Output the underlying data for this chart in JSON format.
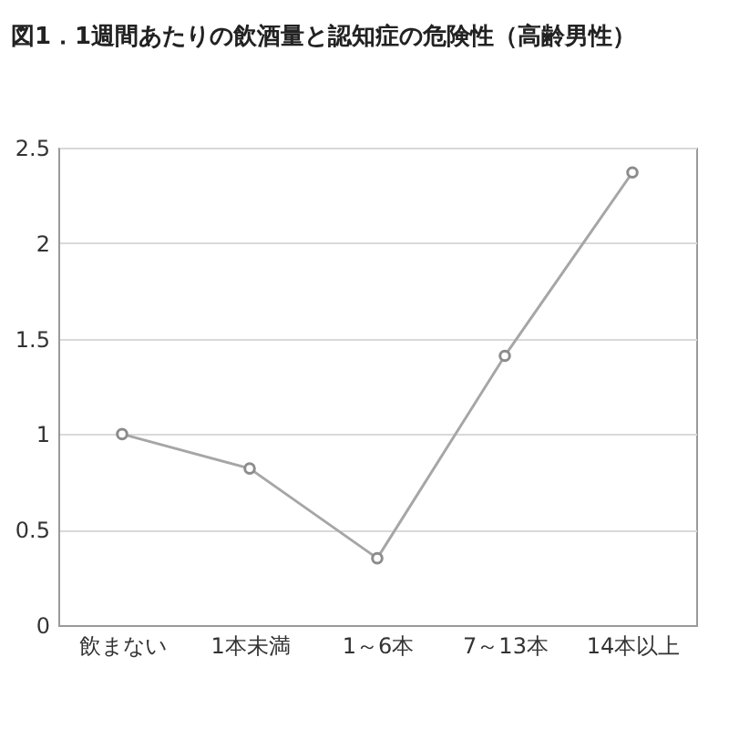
{
  "chart_data": {
    "type": "line",
    "title": "図1．1週間あたりの飲酒量と認知症の危険性（高齢男性）",
    "categories": [
      "飲まない",
      "1本未満",
      "1～6本",
      "7～13本",
      "14本以上"
    ],
    "series": [
      {
        "color": "#a6a6a6",
        "values": [
          1.0,
          0.82,
          0.35,
          1.41,
          2.37
        ]
      }
    ],
    "ylim": [
      0,
      2.5
    ],
    "yticks": [
      0,
      0.5,
      1,
      1.5,
      2,
      2.5
    ],
    "grid": "y",
    "marker": "circle"
  }
}
